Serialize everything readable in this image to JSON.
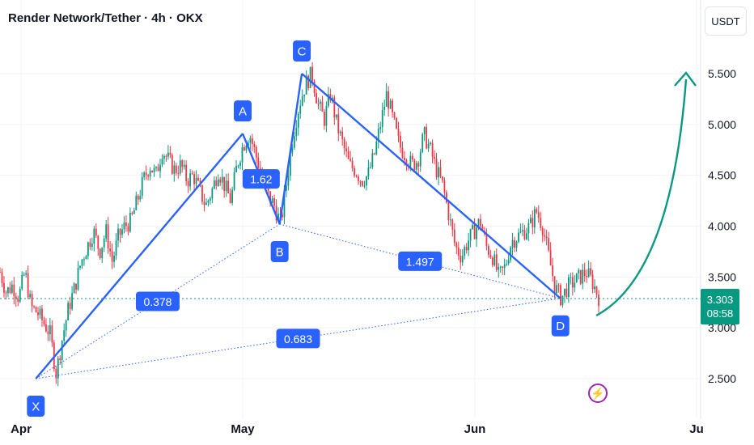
{
  "header": {
    "title": "Render Network/Tether · 4h · OKX",
    "currency": "USDT"
  },
  "price_tag": {
    "price": "3.303",
    "countdown": "08:58",
    "color": "#089981"
  },
  "colors": {
    "pattern": "#2962ff",
    "label_bg": "#2962ff",
    "up_candle": "#089981",
    "down_candle": "#f23645",
    "arrow": "#089981",
    "bolt": "#9c27b0"
  },
  "icons": {
    "bolt": "lightning-bolt-icon"
  },
  "chart_data": {
    "type": "candlestick",
    "title": "Render Network/Tether · 4h · OKX",
    "x_ticks": [
      "Apr",
      "May",
      "Jun",
      "Ju"
    ],
    "y_ticks": [
      "2.500",
      "3.000",
      "3.500",
      "4.000",
      "4.500",
      "5.000",
      "5.500"
    ],
    "ylim": [
      2.35,
      5.85
    ],
    "grid": true,
    "current_price": 3.303,
    "harmonic_points": [
      {
        "label": "X",
        "date": "2024-04-03",
        "price": 2.5
      },
      {
        "label": "A",
        "date": "2024-05-01",
        "price": 4.91
      },
      {
        "label": "B",
        "date": "2024-05-06",
        "price": 4.02
      },
      {
        "label": "C",
        "date": "2024-05-09",
        "price": 5.5
      },
      {
        "label": "D",
        "date": "2024-06-13",
        "price": 3.29
      }
    ],
    "ratios": [
      {
        "label": "1.62",
        "from": "B",
        "to": "A"
      },
      {
        "label": "0.378",
        "from": "X",
        "to": "B"
      },
      {
        "label": "1.497",
        "from": "B",
        "to": "D"
      },
      {
        "label": "0.683",
        "from": "X",
        "to": "D"
      }
    ],
    "projection": {
      "from_price": 3.15,
      "to_price": 5.5
    },
    "price_path": [
      3.55,
      3.35,
      3.42,
      3.3,
      3.55,
      3.2,
      3.15,
      3.05,
      2.95,
      2.55,
      2.9,
      3.2,
      3.4,
      3.65,
      3.8,
      3.95,
      3.75,
      3.95,
      3.65,
      3.9,
      4.0,
      4.05,
      4.25,
      4.45,
      4.6,
      4.5,
      4.75,
      4.65,
      4.55,
      4.6,
      4.45,
      4.5,
      4.35,
      4.2,
      4.35,
      4.55,
      4.4,
      4.25,
      4.6,
      4.8,
      4.91,
      4.7,
      4.5,
      4.3,
      4.2,
      4.02,
      4.45,
      4.9,
      5.2,
      5.4,
      5.5,
      5.2,
      5.05,
      5.3,
      5.0,
      4.8,
      4.6,
      4.55,
      4.45,
      4.5,
      4.7,
      5.0,
      5.3,
      5.05,
      4.8,
      4.7,
      4.6,
      4.65,
      4.9,
      4.75,
      4.55,
      4.4,
      4.1,
      3.8,
      3.7,
      3.85,
      3.95,
      4.05,
      3.8,
      3.7,
      3.5,
      3.6,
      3.85,
      3.9,
      3.95,
      4.0,
      4.15,
      4.0,
      3.7,
      3.4,
      3.29,
      3.4,
      3.45,
      3.5,
      3.55,
      3.45,
      3.303
    ]
  }
}
